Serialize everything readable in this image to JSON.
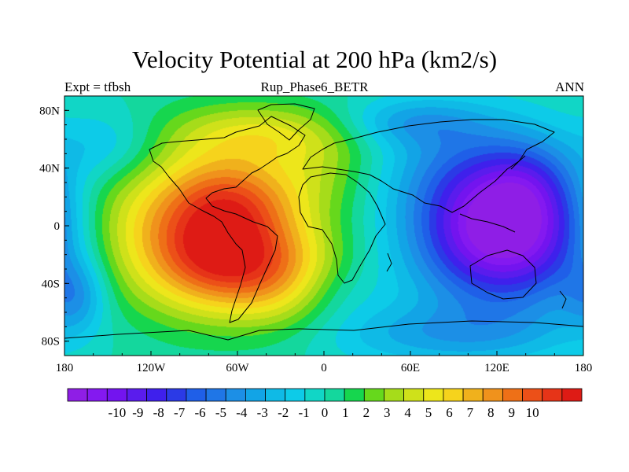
{
  "chart_data": {
    "type": "heatmap",
    "title": "Velocity Potential at 200 hPa (km2/s)",
    "subtitle_left": "Expt = tfbsh",
    "subtitle_center": "Rup_Phase6_BETR",
    "subtitle_right": "ANN",
    "xlabel": "",
    "ylabel": "",
    "x_ticks": [
      "180",
      "120W",
      "60W",
      "0",
      "60E",
      "120E",
      "180"
    ],
    "x_tick_values": [
      -180,
      -120,
      -60,
      0,
      60,
      120,
      180
    ],
    "y_ticks": [
      "80N",
      "40N",
      "0",
      "40S",
      "80S"
    ],
    "y_tick_values": [
      80,
      40,
      0,
      -40,
      -80
    ],
    "xlim": [
      -180,
      180
    ],
    "ylim": [
      -90,
      90
    ],
    "colorbar_labels": [
      "-10",
      "-9",
      "-8",
      "-7",
      "-6",
      "-5",
      "-4",
      "-3",
      "-2",
      "-1",
      "0",
      "1",
      "2",
      "3",
      "4",
      "5",
      "6",
      "7",
      "8",
      "9",
      "10"
    ],
    "colorbar_range": [
      -10,
      10
    ],
    "colorbar_colors": [
      "#8f1ee6",
      "#8419f0",
      "#7314ef",
      "#5a1ced",
      "#3f20ec",
      "#2b3ae6",
      "#1f5fe8",
      "#1f76e7",
      "#1c8fe6",
      "#12a4e6",
      "#0fbae6",
      "#0dcbe8",
      "#11d6c6",
      "#14d79d",
      "#16d64e",
      "#66d81c",
      "#a6dc1a",
      "#cfe11a",
      "#ede61b",
      "#f6d31c",
      "#f0b11c",
      "#f0921c",
      "#ee7017",
      "#ec5018",
      "#e63418",
      "#de1b15"
    ],
    "field_centers": [
      {
        "lon": -82,
        "lat": -2,
        "value": 7.5,
        "sx": 48,
        "sy": 38
      },
      {
        "lon": -75,
        "lat": -25,
        "value": 3.0,
        "sx": 30,
        "sy": 22
      },
      {
        "lon": -60,
        "lat": 20,
        "value": 2.5,
        "sx": 30,
        "sy": 20
      },
      {
        "lon": -30,
        "lat": -35,
        "value": 3.5,
        "sx": 30,
        "sy": 25
      },
      {
        "lon": -40,
        "lat": 65,
        "value": 3.0,
        "sx": 45,
        "sy": 15
      },
      {
        "lon": -160,
        "lat": 5,
        "value": 1.0,
        "sx": 25,
        "sy": 40
      },
      {
        "lon": 0,
        "lat": 40,
        "value": 1.5,
        "sx": 25,
        "sy": 20
      },
      {
        "lon": 125,
        "lat": -2,
        "value": -10.8,
        "sx": 43,
        "sy": 36
      },
      {
        "lon": 140,
        "lat": 30,
        "value": -1.5,
        "sx": 20,
        "sy": 20
      },
      {
        "lon": 90,
        "lat": 45,
        "value": -1.5,
        "sx": 40,
        "sy": 25
      },
      {
        "lon": 60,
        "lat": 72,
        "value": -2.5,
        "sx": 35,
        "sy": 12
      },
      {
        "lon": 80,
        "lat": -75,
        "value": -2.5,
        "sx": 60,
        "sy": 15
      },
      {
        "lon": -172,
        "lat": -48,
        "value": -3.0,
        "sx": 15,
        "sy": 18
      },
      {
        "lon": -150,
        "lat": 55,
        "value": -2.0,
        "sx": 25,
        "sy": 18
      },
      {
        "lon": 5,
        "lat": -45,
        "value": -1.0,
        "sx": 25,
        "sy": 15
      }
    ]
  }
}
